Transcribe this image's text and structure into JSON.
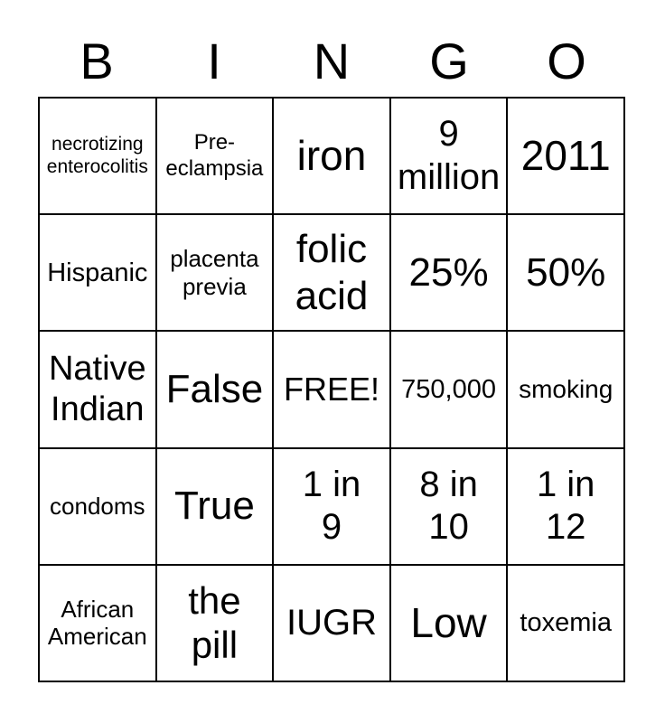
{
  "header": {
    "letters": [
      "B",
      "I",
      "N",
      "G",
      "O"
    ]
  },
  "colors": {
    "background": "#ffffff",
    "text": "#000000",
    "grid_line": "#000000"
  },
  "card": {
    "rows": [
      {
        "cells": [
          {
            "text": "necrotizing enterocolitis",
            "lines": [
              "necrotizing",
              "enterocolitis"
            ]
          },
          {
            "text": "Pre-eclampsia",
            "lines": [
              "Pre-",
              "eclampsia"
            ]
          },
          {
            "text": "iron",
            "lines": [
              "iron"
            ]
          },
          {
            "text": "9 million",
            "lines": [
              "9",
              "million"
            ]
          },
          {
            "text": "2011",
            "lines": [
              "2011"
            ]
          }
        ]
      },
      {
        "cells": [
          {
            "text": "Hispanic",
            "lines": [
              "Hispanic"
            ]
          },
          {
            "text": "placenta previa",
            "lines": [
              "placenta",
              "previa"
            ]
          },
          {
            "text": "folic acid",
            "lines": [
              "folic",
              "acid"
            ]
          },
          {
            "text": "25%",
            "lines": [
              "25%"
            ]
          },
          {
            "text": "50%",
            "lines": [
              "50%"
            ]
          }
        ]
      },
      {
        "cells": [
          {
            "text": "Native Indian",
            "lines": [
              "Native",
              "Indian"
            ]
          },
          {
            "text": "False",
            "lines": [
              "False"
            ]
          },
          {
            "text": "FREE!",
            "lines": [
              "FREE!"
            ]
          },
          {
            "text": "750,000",
            "lines": [
              "750,000"
            ]
          },
          {
            "text": "smoking",
            "lines": [
              "smoking"
            ]
          }
        ]
      },
      {
        "cells": [
          {
            "text": "condoms",
            "lines": [
              "condoms"
            ]
          },
          {
            "text": "True",
            "lines": [
              "True"
            ]
          },
          {
            "text": "1 in 9",
            "lines": [
              "1 in",
              "9"
            ]
          },
          {
            "text": "8 in 10",
            "lines": [
              "8 in",
              "10"
            ]
          },
          {
            "text": "1 in 12",
            "lines": [
              "1 in",
              "12"
            ]
          }
        ]
      },
      {
        "cells": [
          {
            "text": "African American",
            "lines": [
              "African",
              "American"
            ]
          },
          {
            "text": "the pill",
            "lines": [
              "the",
              "pill"
            ]
          },
          {
            "text": "IUGR",
            "lines": [
              "IUGR"
            ]
          },
          {
            "text": "Low",
            "lines": [
              "Low"
            ]
          },
          {
            "text": "toxemia",
            "lines": [
              "toxemia"
            ]
          }
        ]
      }
    ]
  }
}
